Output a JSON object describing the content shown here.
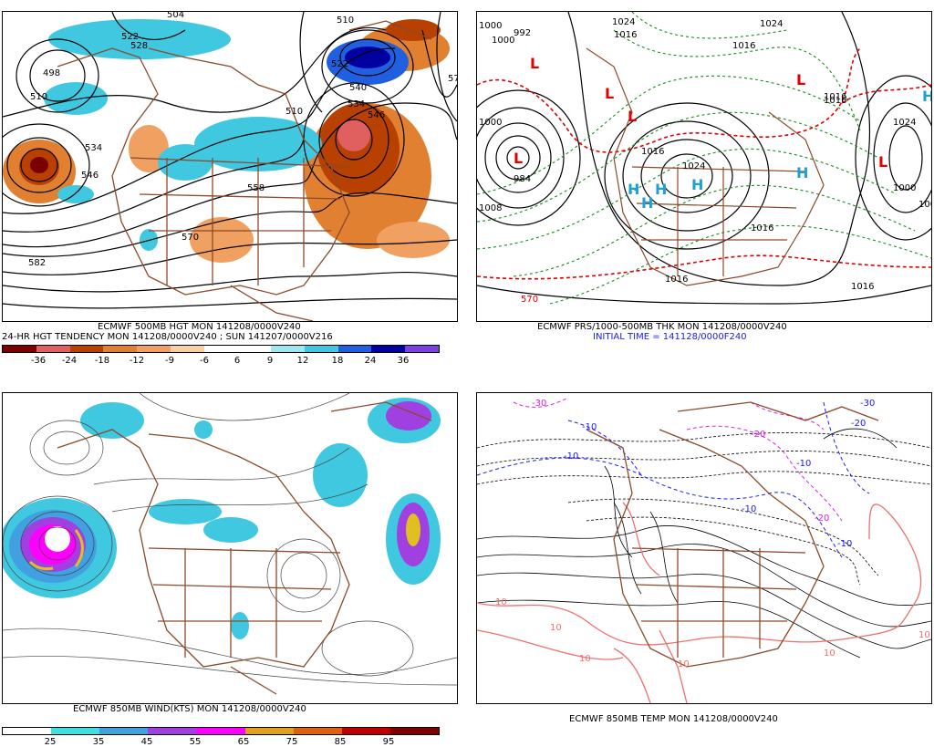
{
  "panels": {
    "hgt": {
      "title": "ECMWF 500MB HGT MON 141208/0000V240",
      "subtitle": "24-HR HGT TENDENCY MON 141208/0000V240 ; SUN 141207/0000V216",
      "colorbar": {
        "labels": [
          "-36",
          "-24",
          "-18",
          "-12",
          "-9",
          "-6",
          "6",
          "9",
          "12",
          "18",
          "24",
          "36"
        ],
        "colors": [
          "#7a0000",
          "#e06060",
          "#b84000",
          "#e08030",
          "#f0a060",
          "#f8d0a0",
          "#ffffff",
          "#ffffff",
          "#9ae8f0",
          "#40c8e0",
          "#2060e0",
          "#0000a0",
          "#8040e0"
        ]
      },
      "contour_labels": [
        "504",
        "522",
        "528",
        "498",
        "510",
        "534",
        "546",
        "510",
        "558",
        "570",
        "582",
        "522",
        "540",
        "534",
        "546",
        "510",
        "57"
      ]
    },
    "prs": {
      "title": "ECMWF PRS/1000-500MB THK MON 141208/0000V240",
      "initial_time": "INITIAL TIME = 141128/0000F240",
      "labels": [
        "1000",
        "992",
        "1000",
        "1024",
        "1016",
        "1024",
        "1016",
        "1024",
        "1016",
        "1016",
        "1008",
        "1000",
        "1016",
        "1024",
        "1016",
        "1016",
        "570",
        "1008",
        "1000",
        "1016",
        "984"
      ]
    },
    "wind": {
      "title": "ECMWF 850MB WIND(KTS) MON 141208/0000V240",
      "colorbar": {
        "labels": [
          "25",
          "35",
          "45",
          "55",
          "65",
          "75",
          "85",
          "95"
        ],
        "colors": [
          "#ffffff",
          "#40e0e0",
          "#40a0e0",
          "#a040e0",
          "#ff00ff",
          "#e0a020",
          "#e06010",
          "#c00000",
          "#800000"
        ]
      }
    },
    "temp": {
      "title": "ECMWF 850MB TEMP MON 141208/0000V240",
      "labels": [
        "-30",
        "-20",
        "-10",
        "-10",
        "-20",
        "-10",
        "-10",
        "-20",
        "-30",
        "-10",
        "10",
        "10",
        "10",
        "10",
        "10",
        "10"
      ]
    }
  },
  "symbols": {
    "low": "L",
    "high": "H"
  }
}
